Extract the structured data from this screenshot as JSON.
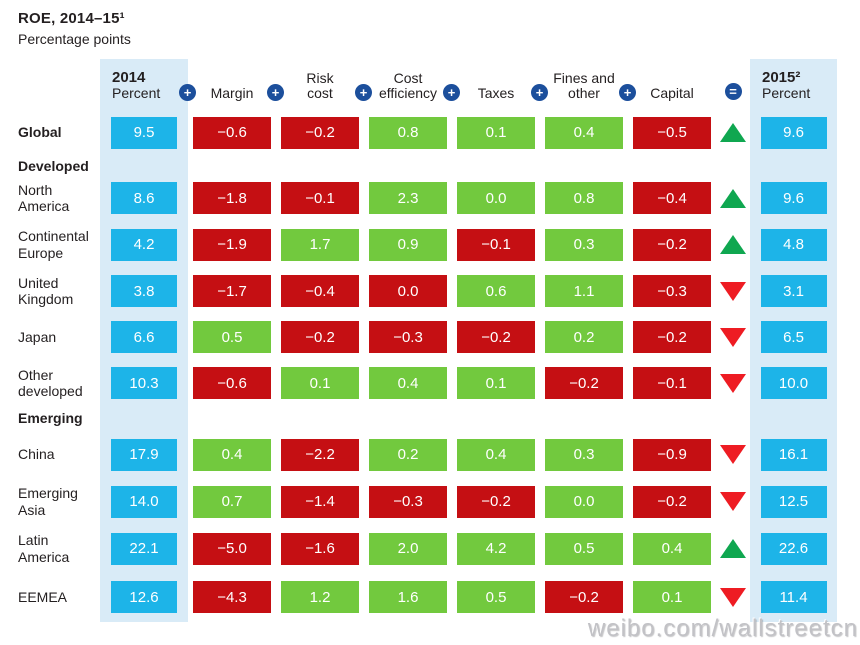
{
  "header": {
    "title": "ROE, 2014–15¹",
    "subtitle": "Percentage points"
  },
  "watermark": "weibo.com/wallstreetcn",
  "chart_data": {
    "type": "table",
    "title": "ROE, 2014–15",
    "unit": "Percentage points",
    "description": "Waterfall decomposition of return-on-equity change from 2014 to 2015 by region",
    "start_column": {
      "key": "2014-percent",
      "label_lines": [
        "2014",
        "Percent"
      ]
    },
    "end_column": {
      "key": "2015-percent",
      "label_lines": [
        "2015²",
        "Percent"
      ]
    },
    "factor_columns": [
      {
        "key": "margin",
        "label_lines": [
          "Margin"
        ],
        "operator": "+"
      },
      {
        "key": "risk-cost",
        "label_lines": [
          "Risk",
          "cost"
        ],
        "operator": "+"
      },
      {
        "key": "cost-efficiency",
        "label_lines": [
          "Cost",
          "efficiency"
        ],
        "operator": "+"
      },
      {
        "key": "taxes",
        "label_lines": [
          "Taxes"
        ],
        "operator": "+"
      },
      {
        "key": "fines-other",
        "label_lines": [
          "Fines and",
          "other"
        ],
        "operator": "+"
      },
      {
        "key": "capital",
        "label_lines": [
          "Capital"
        ],
        "operator": "+"
      }
    ],
    "result_operator": "=",
    "colors": {
      "start_end_cell": "#1db4e8",
      "positive_cell": "#72c93e",
      "negative_cell": "#c50f13",
      "column_highlight": "#d9ebf7",
      "operator_circle": "#1c4f9c",
      "up_triangle": "#0fa750",
      "down_triangle": "#ee1c23"
    },
    "rows": [
      {
        "type": "data",
        "label": "Global",
        "bold": true,
        "start": "9.5",
        "cells": [
          {
            "v": "−0.6",
            "c": "neg"
          },
          {
            "v": "−0.2",
            "c": "neg"
          },
          {
            "v": "0.8",
            "c": "pos"
          },
          {
            "v": "0.1",
            "c": "pos"
          },
          {
            "v": "0.4",
            "c": "pos"
          },
          {
            "v": "−0.5",
            "c": "neg"
          }
        ],
        "trend": "up",
        "end": "9.6"
      },
      {
        "type": "section",
        "label": "Developed"
      },
      {
        "type": "data",
        "label": "North America",
        "bold": false,
        "start": "8.6",
        "cells": [
          {
            "v": "−1.8",
            "c": "neg"
          },
          {
            "v": "−0.1",
            "c": "neg"
          },
          {
            "v": "2.3",
            "c": "pos"
          },
          {
            "v": "0.0",
            "c": "pos"
          },
          {
            "v": "0.8",
            "c": "pos"
          },
          {
            "v": "−0.4",
            "c": "neg"
          }
        ],
        "trend": "up",
        "end": "9.6"
      },
      {
        "type": "data",
        "label": "Continental Europe",
        "bold": false,
        "start": "4.2",
        "cells": [
          {
            "v": "−1.9",
            "c": "neg"
          },
          {
            "v": "1.7",
            "c": "pos"
          },
          {
            "v": "0.9",
            "c": "pos"
          },
          {
            "v": "−0.1",
            "c": "neg"
          },
          {
            "v": "0.3",
            "c": "pos"
          },
          {
            "v": "−0.2",
            "c": "neg"
          }
        ],
        "trend": "up",
        "end": "4.8"
      },
      {
        "type": "data",
        "label": "United Kingdom",
        "bold": false,
        "start": "3.8",
        "cells": [
          {
            "v": "−1.7",
            "c": "neg"
          },
          {
            "v": "−0.4",
            "c": "neg"
          },
          {
            "v": "0.0",
            "c": "neg"
          },
          {
            "v": "0.6",
            "c": "pos"
          },
          {
            "v": "1.1",
            "c": "pos"
          },
          {
            "v": "−0.3",
            "c": "neg"
          }
        ],
        "trend": "down",
        "end": "3.1"
      },
      {
        "type": "data",
        "label": "Japan",
        "bold": false,
        "start": "6.6",
        "cells": [
          {
            "v": "0.5",
            "c": "pos"
          },
          {
            "v": "−0.2",
            "c": "neg"
          },
          {
            "v": "−0.3",
            "c": "neg"
          },
          {
            "v": "−0.2",
            "c": "neg"
          },
          {
            "v": "0.2",
            "c": "pos"
          },
          {
            "v": "−0.2",
            "c": "neg"
          }
        ],
        "trend": "down",
        "end": "6.5"
      },
      {
        "type": "data",
        "label": "Other developed",
        "bold": false,
        "start": "10.3",
        "cells": [
          {
            "v": "−0.6",
            "c": "neg"
          },
          {
            "v": "0.1",
            "c": "pos"
          },
          {
            "v": "0.4",
            "c": "pos"
          },
          {
            "v": "0.1",
            "c": "pos"
          },
          {
            "v": "−0.2",
            "c": "neg"
          },
          {
            "v": "−0.1",
            "c": "neg"
          }
        ],
        "trend": "down",
        "end": "10.0"
      },
      {
        "type": "section",
        "label": "Emerging"
      },
      {
        "type": "data",
        "label": "China",
        "bold": false,
        "start": "17.9",
        "cells": [
          {
            "v": "0.4",
            "c": "pos"
          },
          {
            "v": "−2.2",
            "c": "neg"
          },
          {
            "v": "0.2",
            "c": "pos"
          },
          {
            "v": "0.4",
            "c": "pos"
          },
          {
            "v": "0.3",
            "c": "pos"
          },
          {
            "v": "−0.9",
            "c": "neg"
          }
        ],
        "trend": "down",
        "end": "16.1"
      },
      {
        "type": "data",
        "label": "Emerging Asia",
        "bold": false,
        "start": "14.0",
        "cells": [
          {
            "v": "0.7",
            "c": "pos"
          },
          {
            "v": "−1.4",
            "c": "neg"
          },
          {
            "v": "−0.3",
            "c": "neg"
          },
          {
            "v": "−0.2",
            "c": "neg"
          },
          {
            "v": "0.0",
            "c": "pos"
          },
          {
            "v": "−0.2",
            "c": "neg"
          }
        ],
        "trend": "down",
        "end": "12.5"
      },
      {
        "type": "data",
        "label": "Latin America",
        "bold": false,
        "start": "22.1",
        "cells": [
          {
            "v": "−5.0",
            "c": "neg"
          },
          {
            "v": "−1.6",
            "c": "neg"
          },
          {
            "v": "2.0",
            "c": "pos"
          },
          {
            "v": "4.2",
            "c": "pos"
          },
          {
            "v": "0.5",
            "c": "pos"
          },
          {
            "v": "0.4",
            "c": "pos"
          }
        ],
        "trend": "up",
        "end": "22.6"
      },
      {
        "type": "data",
        "label": "EEMEA",
        "bold": false,
        "start": "12.6",
        "cells": [
          {
            "v": "−4.3",
            "c": "neg"
          },
          {
            "v": "1.2",
            "c": "pos"
          },
          {
            "v": "1.6",
            "c": "pos"
          },
          {
            "v": "0.5",
            "c": "pos"
          },
          {
            "v": "−0.2",
            "c": "neg"
          },
          {
            "v": "0.1",
            "c": "pos"
          }
        ],
        "trend": "down",
        "end": "11.4"
      }
    ]
  }
}
